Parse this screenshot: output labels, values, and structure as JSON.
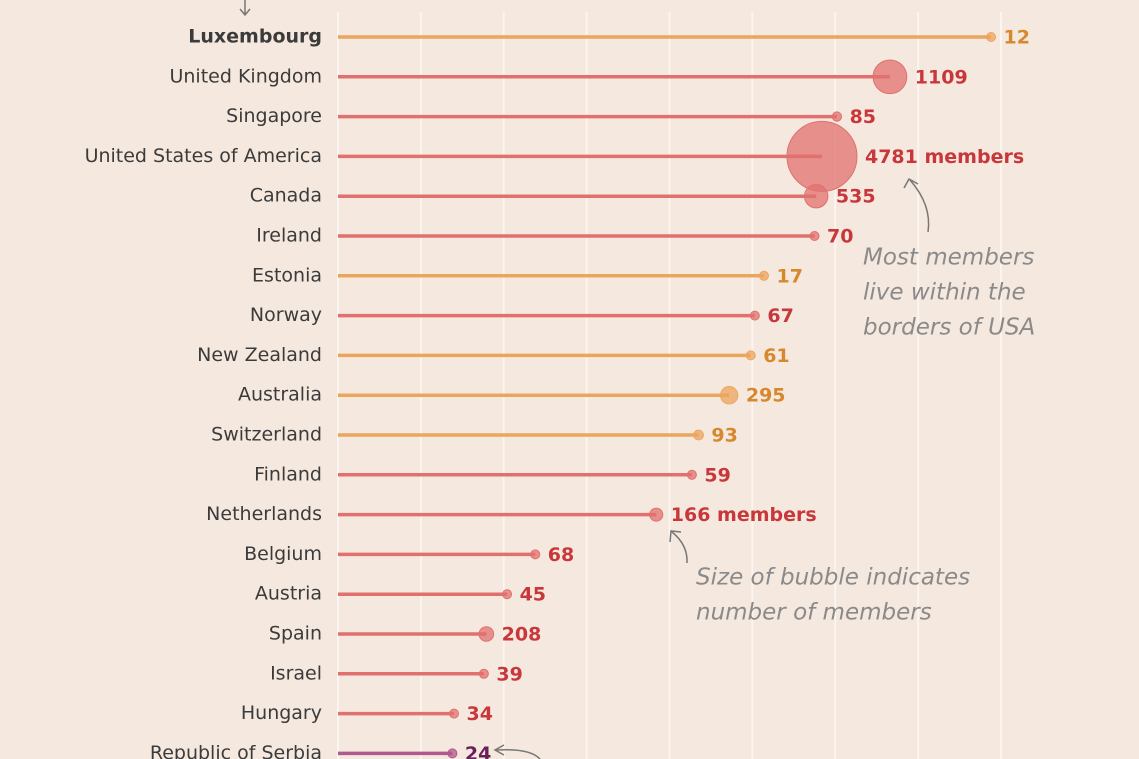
{
  "chart_data": {
    "type": "lollipop",
    "categories": [
      "Luxembourg",
      "United Kingdom",
      "Singapore",
      "United States of America",
      "Canada",
      "Ireland",
      "Estonia",
      "Norway",
      "New Zealand",
      "Australia",
      "Switzerland",
      "Finland",
      "Netherlands",
      "Belgium",
      "Austria",
      "Spain",
      "Israel",
      "Hungary",
      "Republic of Serbia"
    ],
    "values": [
      7.88,
      6.66,
      6.02,
      5.84,
      5.77,
      5.75,
      5.14,
      5.03,
      4.98,
      4.72,
      4.35,
      4.27,
      3.84,
      2.38,
      2.04,
      1.79,
      1.76,
      1.4,
      1.38
    ],
    "sizes": [
      12,
      1109,
      85,
      4781,
      535,
      70,
      17,
      67,
      61,
      295,
      93,
      59,
      166,
      68,
      45,
      208,
      39,
      34,
      24
    ],
    "size_labels": [
      "12",
      "1109",
      "85",
      "4781 members",
      "535",
      "70",
      "17",
      "67",
      "61",
      "295",
      "93",
      "59",
      "166 members",
      "68",
      "45",
      "208",
      "39",
      "34",
      "24"
    ],
    "colors": [
      "#eba65e",
      "#e0716f",
      "#e0716f",
      "#e0716f",
      "#e0716f",
      "#e0716f",
      "#eba65e",
      "#e0716f",
      "#eba65e",
      "#eba65e",
      "#eba65e",
      "#e0716f",
      "#e0716f",
      "#e0716f",
      "#e0716f",
      "#e0716f",
      "#e0716f",
      "#e0716f",
      "#b1588f"
    ],
    "text_colors": [
      "#d7882c",
      "#c8373a",
      "#c8373a",
      "#c8373a",
      "#c8373a",
      "#c8373a",
      "#d7882c",
      "#c8373a",
      "#d7882c",
      "#d7882c",
      "#d7882c",
      "#c8373a",
      "#c8373a",
      "#c8373a",
      "#c8373a",
      "#c8373a",
      "#c8373a",
      "#c8373a",
      "#6b1f5a"
    ],
    "highlight_index": 0,
    "xlim": [
      0,
      8
    ],
    "xgrid": [
      0,
      1,
      2,
      3,
      4,
      5,
      6,
      7,
      8
    ],
    "annotations": [
      {
        "lines": [
          "Most members",
          "live within the",
          "borders of USA"
        ]
      },
      {
        "lines": [
          "Size of bubble indicates",
          "number of members"
        ]
      }
    ]
  }
}
